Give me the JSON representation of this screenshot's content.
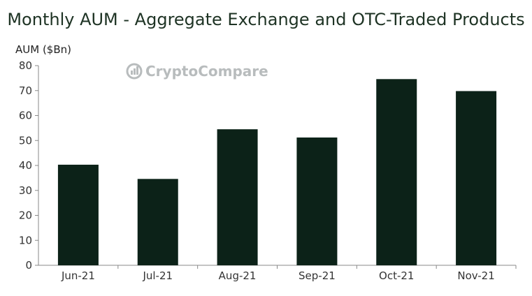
{
  "chart_data": {
    "type": "bar",
    "title": "Monthly AUM - Aggregate Exchange and OTC-Traded Products",
    "ylabel": "AUM ($Bn)",
    "xlabel": "",
    "categories": [
      "Jun-21",
      "Jul-21",
      "Aug-21",
      "Sep-21",
      "Oct-21",
      "Nov-21"
    ],
    "values": [
      40.3,
      34.6,
      54.5,
      51.2,
      74.6,
      69.8
    ],
    "ylim": [
      0,
      80
    ],
    "yticks": [
      0,
      10,
      20,
      30,
      40,
      50,
      60,
      70,
      80
    ],
    "grid": false,
    "legend": "none",
    "bar_color": "#0c2218"
  },
  "watermark": {
    "text_a": "Crypto",
    "text_b": "Compare",
    "color": "#b8bcbd"
  }
}
